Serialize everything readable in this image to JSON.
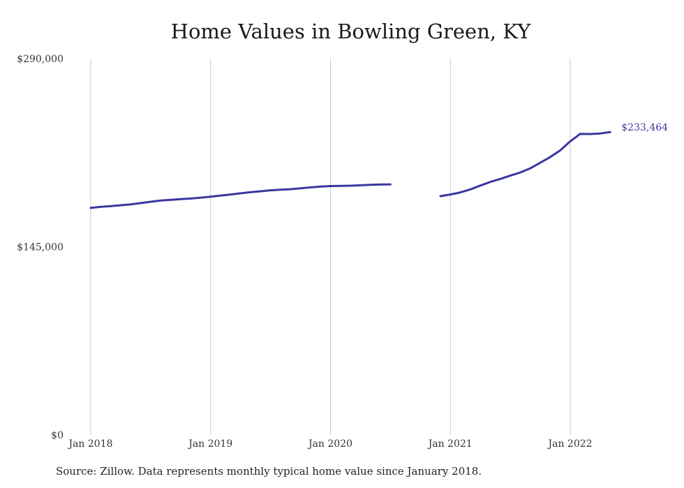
{
  "chart_data": {
    "type": "line",
    "title": "Home Values in Bowling Green, KY",
    "xlabel": "",
    "ylabel": "",
    "ylim": [
      0,
      290000
    ],
    "yticks": [
      {
        "value": 0,
        "label": "$0"
      },
      {
        "value": 145000,
        "label": "$145,000"
      },
      {
        "value": 290000,
        "label": "$290,000"
      }
    ],
    "xticks": [
      {
        "value": 2018.0,
        "label": "Jan 2018"
      },
      {
        "value": 2019.0,
        "label": "Jan 2019"
      },
      {
        "value": 2020.0,
        "label": "Jan 2020"
      },
      {
        "value": 2021.0,
        "label": "Jan 2021"
      },
      {
        "value": 2022.0,
        "label": "Jan 2022"
      }
    ],
    "xlim": [
      2018.0,
      2022.33
    ],
    "grid": "vertical",
    "line_color": "#3b36a0",
    "series": [
      {
        "segments": [
          {
            "dates": [
              "2018-01",
              "2018-02",
              "2018-03",
              "2018-04",
              "2018-05",
              "2018-06",
              "2018-07",
              "2018-08",
              "2018-09",
              "2018-10",
              "2018-11",
              "2018-12",
              "2019-01",
              "2019-02",
              "2019-03",
              "2019-04",
              "2019-05",
              "2019-06",
              "2019-07",
              "2019-08",
              "2019-09",
              "2019-10",
              "2019-11",
              "2019-12",
              "2020-01",
              "2020-02",
              "2020-03",
              "2020-04",
              "2020-05",
              "2020-06",
              "2020-07"
            ],
            "values": [
              175000,
              175800,
              176300,
              177000,
              177700,
              178700,
              179700,
              180600,
              181200,
              181700,
              182200,
              182900,
              183600,
              184500,
              185300,
              186200,
              187100,
              187800,
              188500,
              189000,
              189400,
              190100,
              190800,
              191400,
              191800,
              191900,
              192100,
              192400,
              192800,
              193000,
              193100
            ]
          },
          {
            "dates": [
              "2020-12",
              "2021-01",
              "2021-02",
              "2021-03",
              "2021-04",
              "2021-05",
              "2021-06",
              "2021-07",
              "2021-08",
              "2021-09",
              "2021-10",
              "2021-11",
              "2021-12",
              "2022-01",
              "2022-02",
              "2022-03",
              "2022-04",
              "2022-05"
            ],
            "values": [
              184000,
              185300,
              186900,
              189200,
              192200,
              195000,
              197300,
              199800,
              202300,
              205500,
              209800,
              214200,
              219300,
              226300,
              232000,
              231900,
              232300,
              233464
            ]
          }
        ]
      }
    ],
    "end_label": "$233,464"
  },
  "footer": {
    "source": "Source: Zillow. Data represents monthly typical home value since January 2018."
  }
}
